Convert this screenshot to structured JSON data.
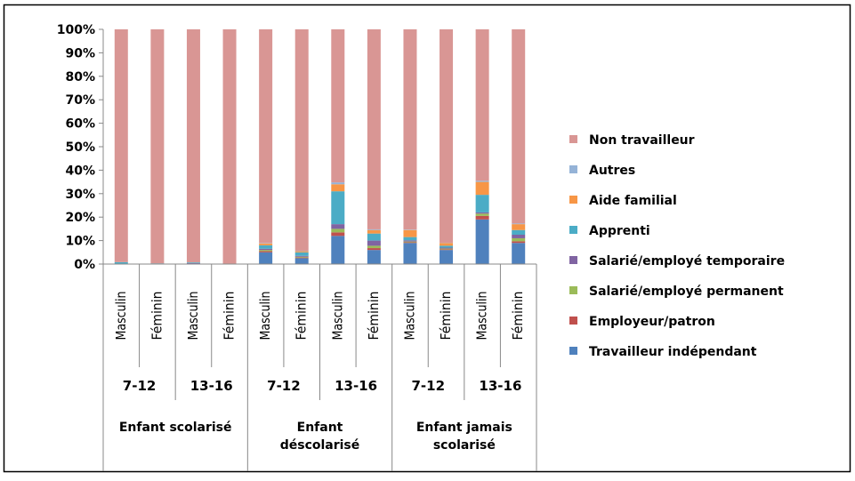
{
  "chart_data": {
    "type": "bar",
    "stacked": true,
    "percent": true,
    "ylim": [
      0,
      100
    ],
    "yticks": [
      "0%",
      "10%",
      "20%",
      "30%",
      "40%",
      "50%",
      "60%",
      "70%",
      "80%",
      "90%",
      "100%"
    ],
    "categories": [
      "Masculin",
      "Féminin",
      "Masculin",
      "Féminin",
      "Masculin",
      "Féminin",
      "Masculin",
      "Féminin",
      "Masculin",
      "Féminin",
      "Masculin",
      "Féminin"
    ],
    "age_groups": [
      "7-12",
      "13-16",
      "7-12",
      "13-16",
      "7-12",
      "13-16"
    ],
    "groups": [
      "Enfant scolarisé",
      "Enfant déscolarisé",
      "Enfant jamais scolarisé"
    ],
    "series": [
      {
        "name": "Travailleur indépendant",
        "color": "#4F81BD",
        "values": [
          0.2,
          0.1,
          0.2,
          0.1,
          5,
          2.5,
          12,
          6,
          9,
          6,
          19,
          9
        ]
      },
      {
        "name": "Employeur/patron",
        "color": "#C0504D",
        "values": [
          0,
          0,
          0,
          0,
          0.5,
          0.3,
          1.5,
          0.8,
          0.3,
          0.3,
          1.5,
          0.7
        ]
      },
      {
        "name": "Salarié/employé permanent",
        "color": "#9BBB59",
        "values": [
          0,
          0,
          0,
          0,
          0.5,
          0.3,
          1.5,
          1,
          0.3,
          0.3,
          1,
          1.3
        ]
      },
      {
        "name": "Salarié/employé temporaire",
        "color": "#8064A2",
        "values": [
          0,
          0,
          0.2,
          0,
          0.5,
          0.4,
          2,
          2.2,
          0.5,
          0.4,
          0.5,
          1.5
        ]
      },
      {
        "name": "Apprenti",
        "color": "#4BACC6",
        "values": [
          0.6,
          0.2,
          0.3,
          0.1,
          1.5,
          1.5,
          14,
          3,
          1.4,
          0.8,
          7.5,
          2
        ]
      },
      {
        "name": "Aide familial",
        "color": "#F79646",
        "values": [
          0,
          0,
          0,
          0,
          0.8,
          0.5,
          3,
          1.5,
          3,
          1.2,
          5.5,
          2.5
        ]
      },
      {
        "name": "Autres",
        "color": "#95B3D7",
        "values": [
          0,
          0,
          0,
          0,
          0.2,
          0.2,
          0.8,
          0.3,
          0.2,
          0.1,
          0.5,
          0.3
        ]
      },
      {
        "name": "Non travailleur",
        "color": "#D99694",
        "values": [
          99.2,
          99.7,
          99.3,
          99.8,
          91,
          94.3,
          65.2,
          85.2,
          85.3,
          90.9,
          64.5,
          82.7
        ]
      }
    ],
    "legend_title": "",
    "title": "",
    "legend_position": "right",
    "legend_order": [
      "Non travailleur",
      "Autres",
      "Aide familial",
      "Apprenti",
      "Salarié/employé temporaire",
      "Salarié/employé permanent",
      "Employeur/patron",
      "Travailleur indépendant"
    ],
    "grid": false
  }
}
